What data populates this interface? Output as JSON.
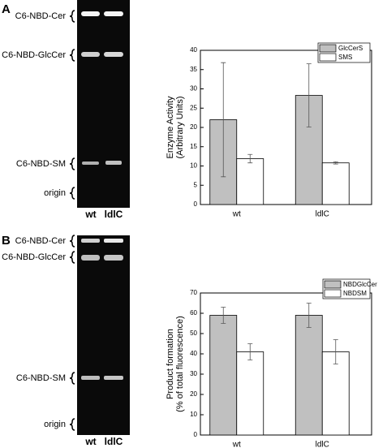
{
  "panels": [
    {
      "letter": "A",
      "gel_labels": [
        "C6-NBD-Cer",
        "C6-NBD-GlcCer",
        "C6-NBD-SM",
        "origin"
      ],
      "lanes": [
        "wt",
        "ldlC"
      ]
    },
    {
      "letter": "B",
      "gel_labels": [
        "C6-NBD-Cer",
        "C6-NBD-GlcCer",
        "C6-NBD-SM",
        "origin"
      ],
      "lanes": [
        "wt",
        "ldlC"
      ]
    }
  ],
  "chart_data": [
    {
      "type": "bar",
      "y_label": [
        "Enzyme Activity",
        "(Arbitrary Units)"
      ],
      "categories": [
        "wt",
        "ldlC"
      ],
      "series": [
        {
          "name": "GlcCerS",
          "color": "#c0c0c0",
          "values": [
            22,
            28.3
          ],
          "errors": [
            14.8,
            8.2
          ]
        },
        {
          "name": "SMS",
          "color": "#ffffff",
          "values": [
            11.9,
            10.8
          ],
          "errors": [
            1.1,
            0.3
          ]
        }
      ],
      "ylim": [
        0,
        40
      ],
      "yticks": [
        0,
        5,
        10,
        15,
        20,
        25,
        30,
        35,
        40
      ],
      "legend": "top-right"
    },
    {
      "type": "bar",
      "y_label": [
        "Product formation",
        "(% of total fluorescence)"
      ],
      "categories": [
        "wt",
        "ldlC"
      ],
      "series": [
        {
          "name": "NBDGlcCer",
          "color": "#c0c0c0",
          "values": [
            59,
            59
          ],
          "errors": [
            4,
            6
          ]
        },
        {
          "name": "NBDSM",
          "color": "#ffffff",
          "values": [
            41,
            41
          ],
          "errors": [
            4,
            6
          ]
        }
      ],
      "ylim": [
        0,
        70
      ],
      "yticks": [
        0,
        10,
        20,
        30,
        40,
        50,
        60,
        70
      ],
      "legend": "top-right"
    }
  ]
}
